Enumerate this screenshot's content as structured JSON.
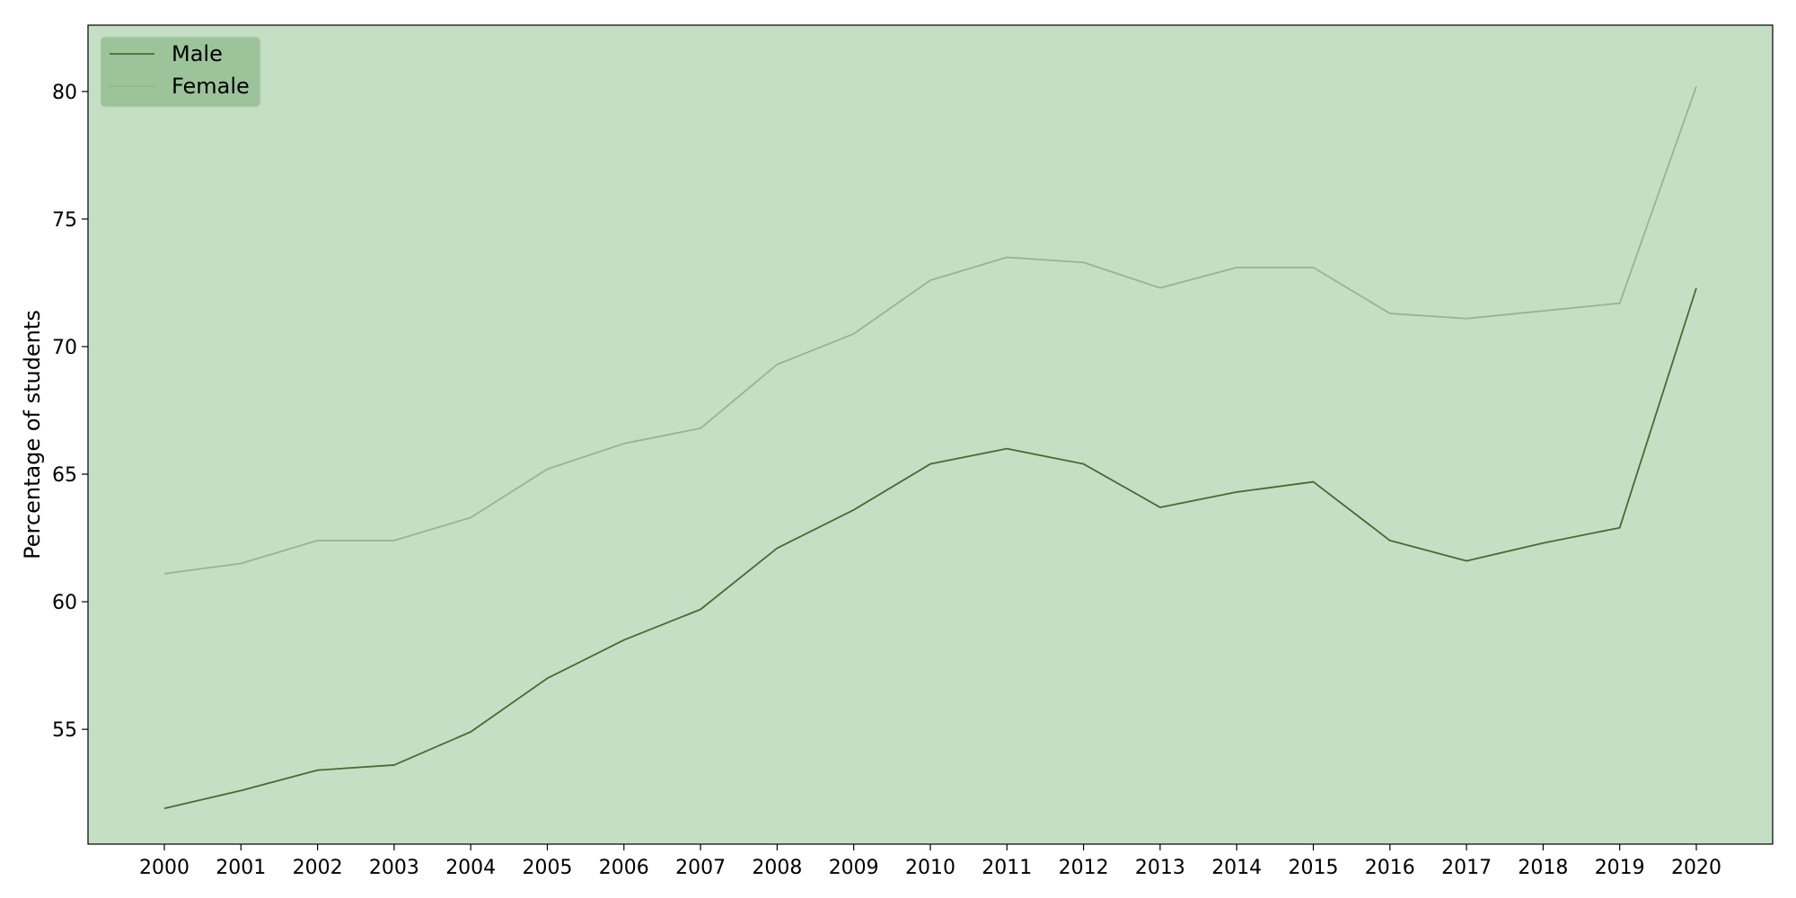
{
  "chart_data": {
    "type": "line",
    "title": "",
    "xlabel": "",
    "ylabel": "Percentage of students",
    "categories": [
      "2000",
      "2001",
      "2002",
      "2003",
      "2004",
      "2005",
      "2006",
      "2007",
      "2008",
      "2009",
      "2010",
      "2011",
      "2012",
      "2013",
      "2014",
      "2015",
      "2016",
      "2017",
      "2018",
      "2019",
      "2020"
    ],
    "y_ticks": [
      "55",
      "60",
      "65",
      "70",
      "75",
      "80"
    ],
    "ylim": [
      50.5,
      82.6
    ],
    "grid": false,
    "legend_position": "top-left",
    "background_color": "#c5dfc5",
    "series": [
      {
        "name": "Male",
        "color": "#4a6b2a",
        "values": [
          51.9,
          52.6,
          53.4,
          53.6,
          54.9,
          57.0,
          58.5,
          59.7,
          62.1,
          63.6,
          65.4,
          66.0,
          65.4,
          63.7,
          64.3,
          64.7,
          62.4,
          61.6,
          62.3,
          62.9,
          72.3
        ]
      },
      {
        "name": "Female",
        "color": "#8fb98f",
        "values": [
          61.1,
          61.5,
          62.4,
          62.4,
          63.3,
          65.2,
          66.2,
          66.8,
          69.3,
          70.5,
          72.6,
          73.5,
          73.3,
          72.3,
          73.1,
          73.1,
          71.3,
          71.1,
          71.4,
          71.7,
          80.2
        ]
      }
    ],
    "legend_background": "#9bc49b"
  }
}
